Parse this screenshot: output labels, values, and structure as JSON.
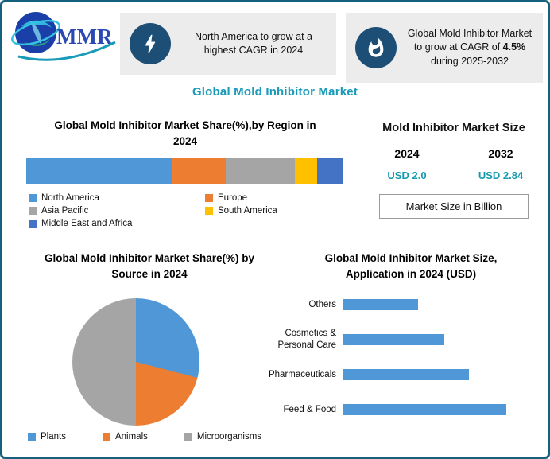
{
  "page": {
    "border_color": "#15607c",
    "accent_color": "#189ab8"
  },
  "logo": {
    "text": "MMR"
  },
  "callouts": [
    {
      "icon": "lightning-icon",
      "text": "North America to grow at a highest CAGR in 2024"
    },
    {
      "icon": "flame-icon",
      "text_before": "Global Mold Inhibitor Market to grow at CAGR of ",
      "highlight": "4.5%",
      "text_after": " during 2025-2032"
    }
  ],
  "main_title": "Global Mold Inhibitor Market",
  "market_size_panel": {
    "title": "Mold Inhibitor Market Size",
    "columns": [
      {
        "year": "2024",
        "value": "USD 2.0"
      },
      {
        "year": "2032",
        "value": "USD 2.84"
      }
    ],
    "value_color": "#149aad",
    "note": "Market Size in Billion"
  },
  "chart_data": [
    {
      "type": "bar",
      "variant": "stacked-horizontal",
      "title": "Global Mold Inhibitor Market Share(%),by Region in 2024",
      "unit": "percent share, estimated from segment lengths",
      "segments": [
        {
          "label": "North America",
          "value": 46,
          "color": "#4f97d6"
        },
        {
          "label": "Europe",
          "value": 17,
          "color": "#ed7d31"
        },
        {
          "label": "Asia Pacific",
          "value": 22,
          "color": "#a5a5a5"
        },
        {
          "label": "South America",
          "value": 7,
          "color": "#ffc000"
        },
        {
          "label": "Middle East and Africa",
          "value": 8,
          "color": "#4472c4"
        }
      ],
      "legend_position": "below, two columns"
    },
    {
      "type": "pie",
      "title": "Global Mold Inhibitor Market Share(%) by Source in 2024",
      "unit": "percent share, estimated from slice angles",
      "slices": [
        {
          "label": "Plants",
          "value": 29,
          "color": "#4f97d6"
        },
        {
          "label": "Animals",
          "value": 21,
          "color": "#ed7d31"
        },
        {
          "label": "Microorganisms",
          "value": 50,
          "color": "#a5a5a5"
        }
      ],
      "legend_position": "below, horizontal"
    },
    {
      "type": "bar",
      "variant": "horizontal",
      "title": "Global Mold Inhibitor Market Size, Application in 2024  (USD)",
      "unit": "relative bar length, no axis values shown",
      "xlim": [
        0,
        100
      ],
      "categories": [
        "Others",
        "Cosmetics & Personal Care",
        "Pharmaceuticals",
        "Feed & Food"
      ],
      "values": [
        46,
        62,
        77,
        100
      ],
      "color": "#4f97d6",
      "grid": false
    }
  ]
}
